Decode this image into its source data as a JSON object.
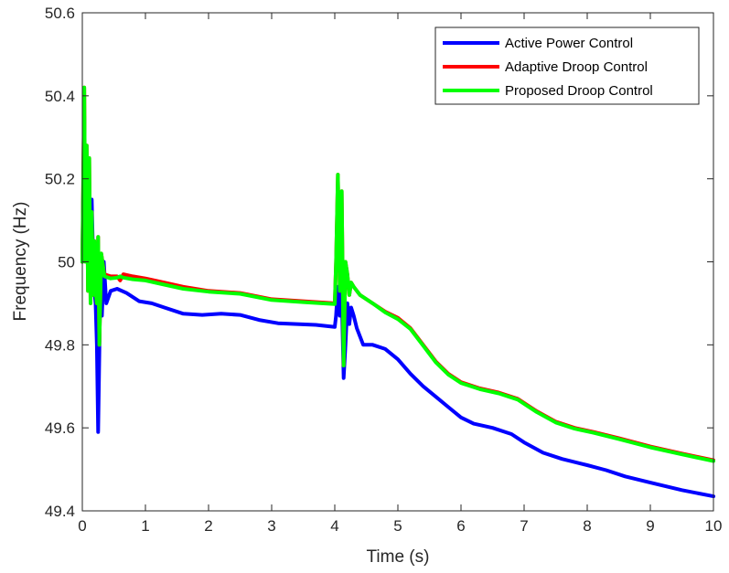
{
  "chart_data": {
    "type": "line",
    "title": "",
    "xlabel": "Time (s)",
    "ylabel": "Frequency (Hz)",
    "xlim": [
      0,
      10
    ],
    "ylim": [
      49.4,
      50.6
    ],
    "xticks": [
      "0",
      "1",
      "2",
      "3",
      "4",
      "5",
      "6",
      "7",
      "8",
      "9",
      "10"
    ],
    "yticks": [
      "49.4",
      "49.6",
      "49.8",
      "50",
      "50.2",
      "50.4",
      "50.6"
    ],
    "grid": false,
    "legend_position": "top-right",
    "series": [
      {
        "name": "Active Power Control",
        "color": "#0000ff",
        "x": [
          0,
          0.03,
          0.06,
          0.09,
          0.12,
          0.15,
          0.18,
          0.21,
          0.23,
          0.25,
          0.27,
          0.29,
          0.31,
          0.34,
          0.38,
          0.45,
          0.55,
          0.7,
          0.9,
          1.1,
          1.3,
          1.6,
          1.9,
          2.2,
          2.5,
          2.8,
          3.1,
          3.4,
          3.7,
          4.0,
          4.02,
          4.05,
          4.08,
          4.11,
          4.14,
          4.17,
          4.2,
          4.23,
          4.26,
          4.3,
          4.35,
          4.45,
          4.6,
          4.8,
          5.0,
          5.2,
          5.4,
          5.6,
          5.8,
          6.0,
          6.2,
          6.5,
          6.8,
          7.0,
          7.3,
          7.6,
          8.0,
          8.3,
          8.6,
          9.0,
          9.5,
          10.0
        ],
        "y": [
          50.0,
          50.35,
          50.05,
          50.25,
          49.98,
          50.15,
          49.95,
          49.9,
          49.8,
          49.59,
          49.78,
          50.0,
          49.87,
          50.0,
          49.9,
          49.93,
          49.935,
          49.925,
          49.905,
          49.9,
          49.89,
          49.875,
          49.872,
          49.875,
          49.872,
          49.86,
          49.852,
          49.85,
          49.848,
          49.843,
          49.87,
          49.94,
          49.87,
          49.93,
          49.72,
          49.8,
          49.9,
          49.85,
          49.89,
          49.87,
          49.84,
          49.8,
          49.8,
          49.79,
          49.765,
          49.73,
          49.7,
          49.675,
          49.65,
          49.625,
          49.61,
          49.6,
          49.585,
          49.565,
          49.54,
          49.525,
          49.51,
          49.498,
          49.483,
          49.468,
          49.45,
          49.435
        ]
      },
      {
        "name": "Adaptive Droop Control",
        "color": "#ff0000",
        "x": [
          0,
          0.03,
          0.05,
          0.07,
          0.09,
          0.11,
          0.13,
          0.15,
          0.17,
          0.19,
          0.21,
          0.23,
          0.25,
          0.27,
          0.3,
          0.35,
          0.45,
          0.55,
          0.6,
          0.65,
          0.8,
          1.0,
          1.3,
          1.6,
          2.0,
          2.5,
          3.0,
          3.5,
          4.0,
          4.02,
          4.05,
          4.08,
          4.11,
          4.14,
          4.17,
          4.2,
          4.23,
          4.26,
          4.3,
          4.4,
          4.6,
          4.8,
          5.0,
          5.2,
          5.4,
          5.6,
          5.8,
          6.0,
          6.3,
          6.6,
          6.9,
          7.2,
          7.5,
          7.8,
          8.1,
          8.5,
          9.0,
          9.5,
          10.0
        ],
        "y": [
          50.0,
          50.42,
          50.0,
          50.28,
          49.93,
          50.25,
          49.9,
          50.12,
          49.92,
          50.05,
          49.93,
          49.9,
          50.06,
          49.8,
          50.02,
          49.97,
          49.965,
          49.965,
          49.955,
          49.97,
          49.965,
          49.96,
          49.95,
          49.94,
          49.93,
          49.925,
          49.91,
          49.905,
          49.9,
          50.0,
          50.21,
          49.93,
          50.17,
          49.75,
          50.0,
          49.97,
          49.92,
          49.95,
          49.94,
          49.92,
          49.9,
          49.88,
          49.865,
          49.84,
          49.8,
          49.76,
          49.73,
          49.71,
          49.695,
          49.685,
          49.67,
          49.64,
          49.615,
          49.6,
          49.59,
          49.575,
          49.555,
          49.538,
          49.522
        ]
      },
      {
        "name": "Proposed Droop Control",
        "color": "#00ff00",
        "x": [
          0,
          0.03,
          0.05,
          0.07,
          0.09,
          0.11,
          0.13,
          0.15,
          0.17,
          0.19,
          0.21,
          0.23,
          0.25,
          0.27,
          0.3,
          0.35,
          0.45,
          0.55,
          0.6,
          0.65,
          0.8,
          1.0,
          1.3,
          1.6,
          2.0,
          2.5,
          3.0,
          3.5,
          4.0,
          4.02,
          4.05,
          4.08,
          4.11,
          4.14,
          4.17,
          4.2,
          4.23,
          4.26,
          4.3,
          4.4,
          4.6,
          4.8,
          5.0,
          5.2,
          5.4,
          5.6,
          5.8,
          6.0,
          6.3,
          6.6,
          6.9,
          7.2,
          7.5,
          7.8,
          8.1,
          8.5,
          9.0,
          9.5,
          10.0
        ],
        "y": [
          50.0,
          50.42,
          50.0,
          50.28,
          49.93,
          50.25,
          49.9,
          50.12,
          49.92,
          50.05,
          49.93,
          49.9,
          50.06,
          49.8,
          50.02,
          49.965,
          49.96,
          49.962,
          49.965,
          49.962,
          49.958,
          49.955,
          49.945,
          49.935,
          49.928,
          49.923,
          49.908,
          49.903,
          49.898,
          50.0,
          50.21,
          49.93,
          50.17,
          49.75,
          50.0,
          49.97,
          49.92,
          49.95,
          49.94,
          49.92,
          49.9,
          49.878,
          49.862,
          49.838,
          49.798,
          49.758,
          49.728,
          49.708,
          49.693,
          49.683,
          49.668,
          49.638,
          49.613,
          49.598,
          49.588,
          49.573,
          49.553,
          49.536,
          49.52
        ]
      }
    ]
  }
}
